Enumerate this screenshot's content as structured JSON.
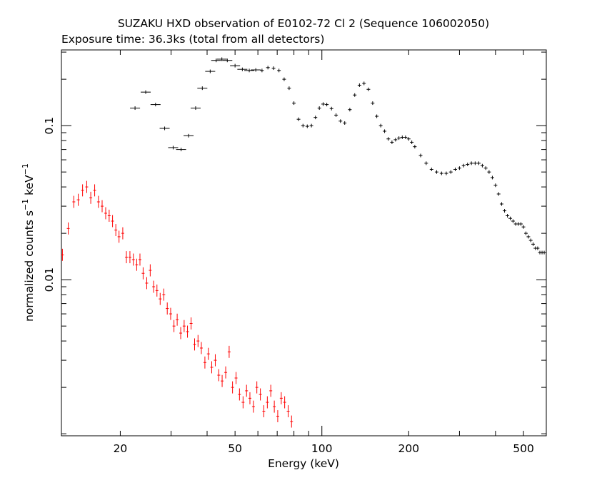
{
  "chart_data": {
    "type": "scatter",
    "title": "SUZAKU HXD observation of E0102-72 Cl 2 (Sequence 106002050)",
    "subtitle": "Exposure time: 36.3ks (total from all detectors)",
    "xlabel": "Energy (keV)",
    "ylabel_main": "normalized counts s",
    "ylabel_sup1": "−1",
    "ylabel_mid": " keV",
    "ylabel_sup2": "−1",
    "x_scale": "log",
    "y_scale": "log",
    "xlim": [
      12.5,
      600
    ],
    "ylim": [
      0.00097,
      0.31
    ],
    "x_ticks": [
      {
        "value": 20,
        "label": "20"
      },
      {
        "value": 50,
        "label": "50"
      },
      {
        "value": 100,
        "label": "100"
      },
      {
        "value": 200,
        "label": "200"
      },
      {
        "value": 500,
        "label": "500"
      }
    ],
    "y_ticks": [
      {
        "value": 0.01,
        "label": "0.01"
      },
      {
        "value": 0.1,
        "label": "0.1"
      }
    ],
    "grid": false,
    "series": [
      {
        "color": "#000000",
        "points": [
          [
            22.5,
            0.13
          ],
          [
            24.5,
            0.165
          ],
          [
            26.5,
            0.137
          ],
          [
            28.5,
            0.096
          ],
          [
            30.5,
            0.072
          ],
          [
            32.5,
            0.07
          ],
          [
            34.5,
            0.086
          ],
          [
            36.5,
            0.13
          ],
          [
            38.5,
            0.175
          ],
          [
            41,
            0.225
          ],
          [
            43,
            0.265
          ],
          [
            45,
            0.27
          ],
          [
            47,
            0.265
          ],
          [
            50,
            0.245
          ],
          [
            53,
            0.232
          ],
          [
            56,
            0.228
          ],
          [
            59,
            0.23
          ],
          [
            62,
            0.228
          ],
          [
            65,
            0.238
          ],
          [
            68,
            0.236
          ],
          [
            71,
            0.228
          ],
          [
            74,
            0.2
          ],
          [
            77,
            0.175
          ],
          [
            80,
            0.14
          ],
          [
            83,
            0.11
          ],
          [
            86,
            0.1
          ],
          [
            89,
            0.099
          ],
          [
            92,
            0.1
          ],
          [
            95,
            0.113
          ],
          [
            98,
            0.13
          ],
          [
            101,
            0.138
          ],
          [
            104,
            0.137
          ],
          [
            108,
            0.129
          ],
          [
            112,
            0.117
          ],
          [
            116,
            0.107
          ],
          [
            120,
            0.104
          ],
          [
            125,
            0.127
          ],
          [
            130,
            0.158
          ],
          [
            135,
            0.183
          ],
          [
            140,
            0.188
          ],
          [
            145,
            0.172
          ],
          [
            150,
            0.14
          ],
          [
            155,
            0.115
          ],
          [
            160,
            0.1
          ],
          [
            165,
            0.092
          ],
          [
            170,
            0.082
          ],
          [
            175,
            0.078
          ],
          [
            180,
            0.081
          ],
          [
            185,
            0.083
          ],
          [
            190,
            0.084
          ],
          [
            195,
            0.084
          ],
          [
            200,
            0.082
          ],
          [
            205,
            0.078
          ],
          [
            210,
            0.073
          ],
          [
            220,
            0.064
          ],
          [
            230,
            0.057
          ],
          [
            240,
            0.052
          ],
          [
            250,
            0.05
          ],
          [
            260,
            0.049
          ],
          [
            270,
            0.049
          ],
          [
            280,
            0.05
          ],
          [
            290,
            0.052
          ],
          [
            300,
            0.053
          ],
          [
            310,
            0.055
          ],
          [
            320,
            0.056
          ],
          [
            330,
            0.057
          ],
          [
            340,
            0.057
          ],
          [
            350,
            0.057
          ],
          [
            360,
            0.055
          ],
          [
            370,
            0.053
          ],
          [
            380,
            0.05
          ],
          [
            390,
            0.046
          ],
          [
            400,
            0.041
          ],
          [
            410,
            0.036
          ],
          [
            420,
            0.031
          ],
          [
            430,
            0.028
          ],
          [
            440,
            0.026
          ],
          [
            450,
            0.025
          ],
          [
            460,
            0.024
          ],
          [
            470,
            0.023
          ],
          [
            480,
            0.023
          ],
          [
            490,
            0.023
          ],
          [
            500,
            0.022
          ],
          [
            510,
            0.02
          ],
          [
            520,
            0.019
          ],
          [
            530,
            0.018
          ],
          [
            540,
            0.017
          ],
          [
            550,
            0.016
          ],
          [
            560,
            0.016
          ],
          [
            570,
            0.015
          ],
          [
            580,
            0.015
          ],
          [
            590,
            0.015
          ]
        ]
      },
      {
        "color": "#ff0000",
        "points": [
          [
            12.6,
            0.0145
          ],
          [
            13.2,
            0.0215
          ],
          [
            13.8,
            0.032
          ],
          [
            14.3,
            0.033
          ],
          [
            14.8,
            0.038
          ],
          [
            15.3,
            0.04
          ],
          [
            15.8,
            0.034
          ],
          [
            16.3,
            0.038
          ],
          [
            16.8,
            0.032
          ],
          [
            17.3,
            0.03
          ],
          [
            17.8,
            0.027
          ],
          [
            18.3,
            0.026
          ],
          [
            18.8,
            0.024
          ],
          [
            19.3,
            0.021
          ],
          [
            19.8,
            0.019
          ],
          [
            20.4,
            0.02
          ],
          [
            21.0,
            0.014
          ],
          [
            21.6,
            0.014
          ],
          [
            22.2,
            0.0135
          ],
          [
            22.8,
            0.0125
          ],
          [
            23.4,
            0.0135
          ],
          [
            24.0,
            0.011
          ],
          [
            24.7,
            0.0095
          ],
          [
            25.4,
            0.0115
          ],
          [
            26.1,
            0.009
          ],
          [
            26.8,
            0.0085
          ],
          [
            27.5,
            0.0075
          ],
          [
            28.3,
            0.008
          ],
          [
            29.1,
            0.0065
          ],
          [
            29.9,
            0.006
          ],
          [
            30.7,
            0.005
          ],
          [
            31.5,
            0.0055
          ],
          [
            32.4,
            0.0045
          ],
          [
            33.3,
            0.005
          ],
          [
            34.2,
            0.0046
          ],
          [
            35.2,
            0.0052
          ],
          [
            36.2,
            0.0038
          ],
          [
            37.2,
            0.004
          ],
          [
            38.2,
            0.0036
          ],
          [
            39.3,
            0.0029
          ],
          [
            40.4,
            0.0033
          ],
          [
            41.5,
            0.0027
          ],
          [
            42.7,
            0.003
          ],
          [
            43.9,
            0.0024
          ],
          [
            45.1,
            0.0022
          ],
          [
            46.4,
            0.0025
          ],
          [
            47.7,
            0.0034
          ],
          [
            49.0,
            0.002
          ],
          [
            50.4,
            0.0023
          ],
          [
            51.8,
            0.0018
          ],
          [
            53.3,
            0.0016
          ],
          [
            54.8,
            0.0019
          ],
          [
            56.3,
            0.0017
          ],
          [
            57.9,
            0.0015
          ],
          [
            59.5,
            0.002
          ],
          [
            61.2,
            0.0018
          ],
          [
            62.9,
            0.0014
          ],
          [
            64.7,
            0.0016
          ],
          [
            66.5,
            0.0019
          ],
          [
            68.4,
            0.0015
          ],
          [
            70.3,
            0.0013
          ],
          [
            72.3,
            0.0017
          ],
          [
            74.3,
            0.0016
          ],
          [
            76.4,
            0.0014
          ],
          [
            78.5,
            0.0012
          ]
        ]
      }
    ]
  }
}
